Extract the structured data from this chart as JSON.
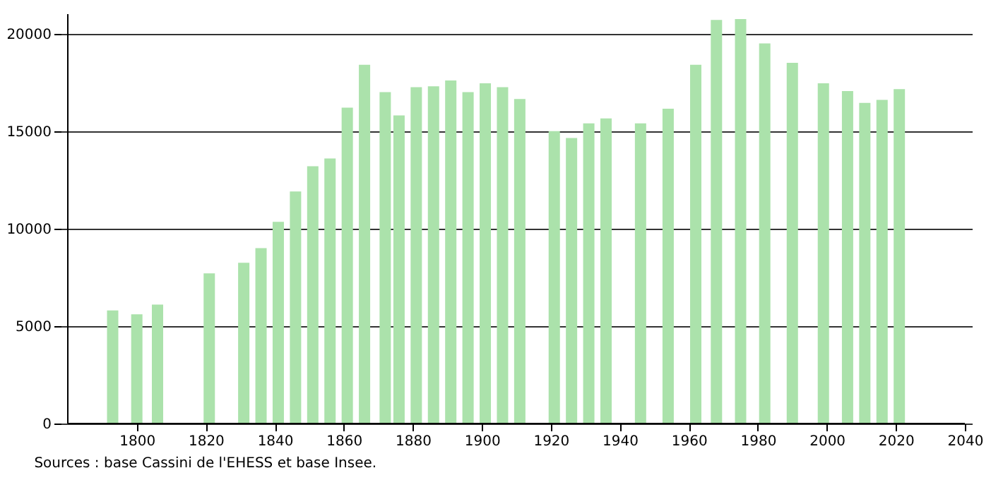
{
  "chart_data": {
    "type": "bar",
    "x": [
      1793,
      1800,
      1806,
      1821,
      1831,
      1836,
      1841,
      1846,
      1851,
      1856,
      1861,
      1866,
      1872,
      1876,
      1881,
      1886,
      1891,
      1896,
      1901,
      1906,
      1911,
      1921,
      1926,
      1931,
      1936,
      1946,
      1954,
      1962,
      1968,
      1975,
      1982,
      1990,
      1999,
      2006,
      2011,
      2016,
      2021
    ],
    "values": [
      5800,
      5600,
      6100,
      7700,
      8250,
      9000,
      10350,
      11900,
      13200,
      13600,
      16200,
      18400,
      17000,
      15800,
      17250,
      17300,
      17600,
      17000,
      17450,
      17250,
      16650,
      15000,
      14650,
      15400,
      15650,
      15400,
      16150,
      18400,
      20700,
      20750,
      19500,
      18500,
      17450,
      17050,
      16450,
      16600,
      17150
    ],
    "color": "#abe2ab",
    "xlim": [
      1780,
      2040
    ],
    "xticks": [
      1800,
      1820,
      1840,
      1860,
      1880,
      1900,
      1920,
      1940,
      1960,
      1980,
      2000,
      2020,
      2040
    ],
    "ylim": [
      0,
      21000
    ],
    "yticks": [
      0,
      5000,
      10000,
      15000,
      20000
    ],
    "grid": "y",
    "annotations": [
      "Sources : base Cassini de l'EHESS et base Insee."
    ]
  }
}
